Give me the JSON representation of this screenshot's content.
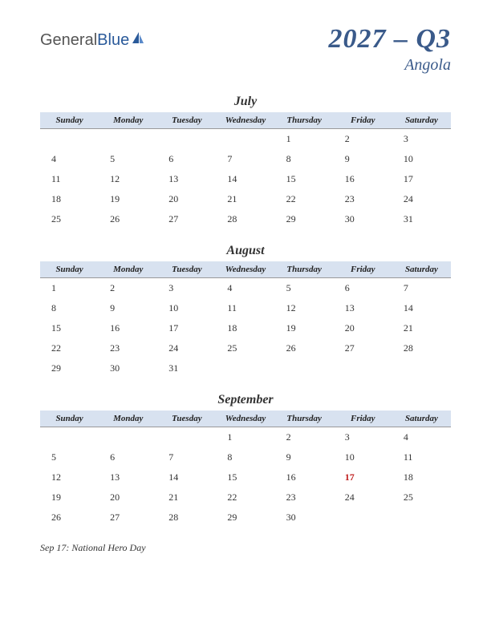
{
  "logo": {
    "text1": "General",
    "text2": "Blue"
  },
  "title": {
    "main": "2027 – Q3",
    "sub": "Angola"
  },
  "colors": {
    "header_bg": "#d8e2f0",
    "title_color": "#3a5a8a",
    "holiday_color": "#c02020",
    "text_color": "#333333",
    "logo_blue": "#2a5a9a"
  },
  "day_headers": [
    "Sunday",
    "Monday",
    "Tuesday",
    "Wednesday",
    "Thursday",
    "Friday",
    "Saturday"
  ],
  "months": [
    {
      "name": "July",
      "weeks": [
        [
          "",
          "",
          "",
          "",
          "1",
          "2",
          "3"
        ],
        [
          "4",
          "5",
          "6",
          "7",
          "8",
          "9",
          "10"
        ],
        [
          "11",
          "12",
          "13",
          "14",
          "15",
          "16",
          "17"
        ],
        [
          "18",
          "19",
          "20",
          "21",
          "22",
          "23",
          "24"
        ],
        [
          "25",
          "26",
          "27",
          "28",
          "29",
          "30",
          "31"
        ]
      ],
      "holidays": []
    },
    {
      "name": "August",
      "weeks": [
        [
          "1",
          "2",
          "3",
          "4",
          "5",
          "6",
          "7"
        ],
        [
          "8",
          "9",
          "10",
          "11",
          "12",
          "13",
          "14"
        ],
        [
          "15",
          "16",
          "17",
          "18",
          "19",
          "20",
          "21"
        ],
        [
          "22",
          "23",
          "24",
          "25",
          "26",
          "27",
          "28"
        ],
        [
          "29",
          "30",
          "31",
          "",
          "",
          "",
          ""
        ]
      ],
      "holidays": []
    },
    {
      "name": "September",
      "weeks": [
        [
          "",
          "",
          "",
          "1",
          "2",
          "3",
          "4"
        ],
        [
          "5",
          "6",
          "7",
          "8",
          "9",
          "10",
          "11"
        ],
        [
          "12",
          "13",
          "14",
          "15",
          "16",
          "17",
          "18"
        ],
        [
          "19",
          "20",
          "21",
          "22",
          "23",
          "24",
          "25"
        ],
        [
          "26",
          "27",
          "28",
          "29",
          "30",
          "",
          ""
        ]
      ],
      "holidays": [
        "17"
      ]
    }
  ],
  "holiday_notes": [
    "Sep 17: National Hero Day"
  ]
}
